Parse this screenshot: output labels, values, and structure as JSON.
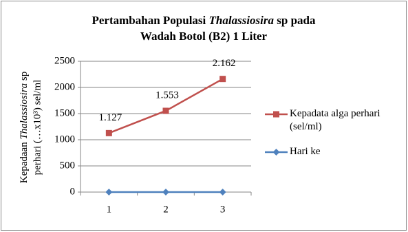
{
  "chart_data": {
    "type": "line",
    "title": [
      "Pertambahan Populasi ",
      "Thalassiosira",
      " sp pada",
      "Wadah Botol (B2) 1 Liter"
    ],
    "ylabel": [
      "Kepadaan ",
      "Thalassiosira",
      " sp",
      "perhari (…x10³) sel/ml"
    ],
    "categories": [
      "1",
      "2",
      "3"
    ],
    "series": [
      {
        "name": "Kepadata alga perhari (sel/ml)",
        "color": "#c0504d",
        "marker": "square",
        "values": [
          1127,
          1553,
          2162
        ],
        "value_labels": [
          "1.127",
          "1.553",
          "2.162"
        ]
      },
      {
        "name": "Hari ke",
        "color": "#4f81bd",
        "marker": "diamond",
        "values": [
          0,
          0,
          0
        ]
      }
    ],
    "ylim": [
      0,
      2500
    ],
    "yticks": [
      0,
      500,
      1000,
      1500,
      2000,
      2500
    ],
    "grid": true,
    "legend": "right"
  }
}
